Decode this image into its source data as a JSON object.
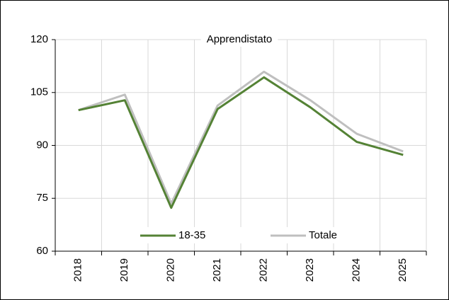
{
  "chart_data": {
    "type": "line",
    "title": "Apprendistato",
    "categories": [
      "2018",
      "2019",
      "2020",
      "2021",
      "2022",
      "2023",
      "2024",
      "2025"
    ],
    "series": [
      {
        "name": "18-35",
        "color": "#548235",
        "values": [
          100,
          102.8,
          72.3,
          100.3,
          109.3,
          100.8,
          91.0,
          87.3
        ]
      },
      {
        "name": "Totale",
        "color": "#bfbfbf",
        "values": [
          100,
          104.4,
          73.5,
          101.3,
          110.9,
          102.8,
          93.3,
          88.3
        ]
      }
    ],
    "ylim": [
      60,
      120
    ],
    "yticks": [
      60,
      75,
      90,
      105,
      120
    ],
    "grid": true,
    "legend": "bottom"
  }
}
